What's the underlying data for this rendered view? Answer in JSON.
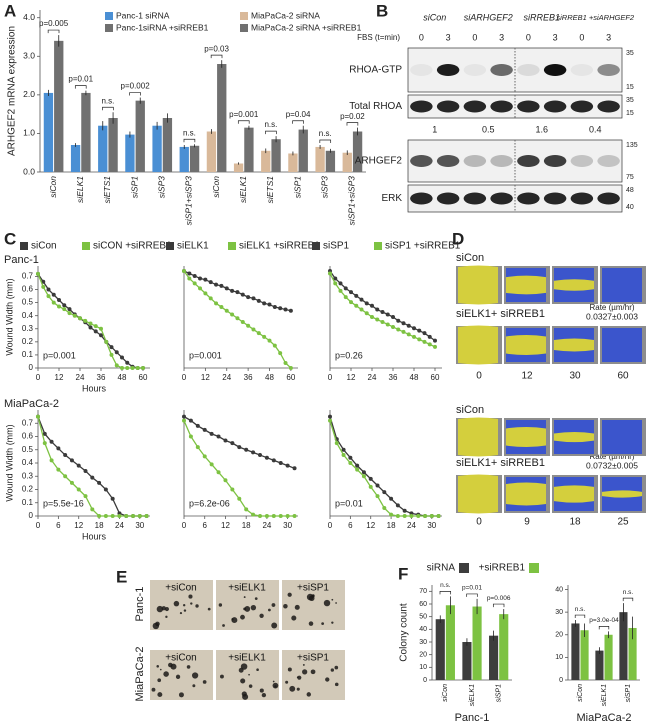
{
  "panel_labels": [
    "A",
    "B",
    "C",
    "D",
    "E",
    "F"
  ],
  "blot": {
    "conditions": [
      "siCon",
      "siARHGEF2",
      "siRREB1",
      "siRREB1 +siARHGEF2"
    ],
    "fbs_label": "FBS (t=min)",
    "times": [
      "0",
      "3"
    ],
    "rows": [
      {
        "label": "RHOA-GTP",
        "markers": [
          "35",
          "15"
        ]
      },
      {
        "label": "Total RHOA",
        "markers": [
          "35",
          "15"
        ]
      },
      {
        "label": "ARHGEF2",
        "markers": [
          "135",
          "75"
        ]
      },
      {
        "label": "ERK",
        "markers": [
          "48",
          "40"
        ]
      }
    ],
    "quantification": [
      1,
      0.5,
      1.6,
      0.4
    ]
  },
  "migration": {
    "blocks": [
      {
        "conditions": [
          "siCon",
          "siELK1+ siRREB1"
        ],
        "rate_label": "Rate (µm/hr)",
        "rate": "0.0327±0.003",
        "times": [
          "0",
          "12",
          "30",
          "60"
        ]
      },
      {
        "conditions": [
          "siCon",
          "siELK1+ siRREB1"
        ],
        "rate_label": "Rate (µm/hr)",
        "rate": "0.0732±0.005",
        "times": [
          "0",
          "9",
          "18",
          "25"
        ]
      }
    ]
  },
  "colony": {
    "rows": [
      "Panc-1",
      "MiaPaCa-2"
    ],
    "conditions": [
      "+siCon",
      "+siELK1",
      "+siSP1"
    ]
  },
  "chart_data": [
    {
      "type": "bar",
      "ylabel": "ARHGEF2 mRNA expression",
      "categories": [
        "siCon",
        "siELK1",
        "siETS1",
        "siSP1",
        "siSP3",
        "siSP1+siSP3",
        "siCon",
        "siELK1",
        "siETS1",
        "siSP1",
        "siSP3",
        "siSP1+siSP3"
      ],
      "series": [
        {
          "name": "Panc-1 siRNA",
          "color": "#4a8fd4",
          "values": [
            2.05,
            0.7,
            1.2,
            0.97,
            1.2,
            0.65,
            null,
            null,
            null,
            null,
            null,
            null
          ],
          "errors": [
            0.08,
            0.05,
            0.12,
            0.08,
            0.1,
            0.05,
            null,
            null,
            null,
            null,
            null,
            null
          ]
        },
        {
          "name": "Panc-1siRNA +siRREB1",
          "color": "#707070",
          "values": [
            3.4,
            2.05,
            1.4,
            1.85,
            1.4,
            0.68,
            null,
            null,
            null,
            null,
            null,
            null
          ],
          "errors": [
            0.15,
            0.06,
            0.15,
            0.08,
            0.12,
            0.04,
            null,
            null,
            null,
            null,
            null,
            null
          ]
        },
        {
          "name": "MiaPaCa-2 siRNA",
          "color": "#d9b99a",
          "values": [
            null,
            null,
            null,
            null,
            null,
            null,
            1.05,
            0.22,
            0.55,
            0.48,
            0.65,
            0.5
          ],
          "errors": [
            null,
            null,
            null,
            null,
            null,
            null,
            0.06,
            0.03,
            0.06,
            0.05,
            0.05,
            0.06
          ]
        },
        {
          "name": "MiaPaCa-2 siRNA +siRREB1",
          "color": "#707070",
          "values": [
            null,
            null,
            null,
            null,
            null,
            null,
            2.8,
            1.15,
            0.85,
            1.1,
            0.55,
            1.05
          ],
          "errors": [
            null,
            null,
            null,
            null,
            null,
            null,
            0.1,
            0.05,
            0.08,
            0.1,
            0.05,
            0.1
          ]
        }
      ],
      "annotations": [
        "p=0.005",
        "p=0.01",
        "n.s.",
        "p=0.002",
        null,
        "n.s.",
        "p=0.03",
        "p=0.001",
        "n.s.",
        "p=0.04",
        "n.s.",
        "p=0.02"
      ],
      "ylim": [
        0,
        4.2
      ],
      "yticks": [
        {
          "value": 0,
          "label": "0.0"
        },
        {
          "value": 1,
          "label": "1.0"
        },
        {
          "value": 2,
          "label": "2.0"
        },
        {
          "value": 3,
          "label": "3.0"
        },
        {
          "value": 4,
          "label": "4.0"
        }
      ]
    },
    {
      "type": "line",
      "row_label": "Panc-1",
      "ylabel": "Wound Width (mm)",
      "xlabel": "Hours",
      "annotation": "p=0.001",
      "x": [
        0,
        3,
        6,
        9,
        12,
        15,
        18,
        21,
        24,
        27,
        30,
        33,
        36,
        39,
        42,
        45,
        48,
        51,
        54,
        57,
        60
      ],
      "series": [
        {
          "name": "siCon",
          "color": "#3a3a3a",
          "values": [
            0.72,
            0.66,
            0.6,
            0.56,
            0.52,
            0.48,
            0.45,
            0.41,
            0.38,
            0.35,
            0.31,
            0.28,
            0.25,
            0.2,
            0.16,
            0.12,
            0.08,
            0.04,
            0.01,
            0,
            0
          ]
        },
        {
          "name": "siCON +siRREB1",
          "color": "#7dc242",
          "values": [
            0.72,
            0.62,
            0.55,
            0.5,
            0.47,
            0.45,
            0.42,
            0.4,
            0.38,
            0.36,
            0.34,
            0.32,
            0.3,
            0.2,
            0.1,
            0.02,
            0,
            0,
            0,
            0,
            0
          ]
        }
      ],
      "xlim": [
        0,
        64
      ],
      "xticks": [
        0,
        12,
        24,
        36,
        48,
        60
      ],
      "ylim": [
        0,
        0.78
      ],
      "yticks": [
        0,
        0.1,
        0.2,
        0.3,
        0.4,
        0.5,
        0.6,
        0.7
      ]
    },
    {
      "type": "line",
      "annotation": "p=0.001",
      "x": [
        0,
        3,
        6,
        9,
        12,
        15,
        18,
        21,
        24,
        27,
        30,
        33,
        36,
        39,
        42,
        45,
        48,
        51,
        54,
        57,
        60
      ],
      "series": [
        {
          "name": "siELK1",
          "color": "#3a3a3a",
          "values": [
            0.78,
            0.76,
            0.74,
            0.72,
            0.71,
            0.69,
            0.67,
            0.66,
            0.64,
            0.62,
            0.61,
            0.59,
            0.57,
            0.56,
            0.54,
            0.52,
            0.51,
            0.49,
            0.48,
            0.47,
            0.46
          ]
        },
        {
          "name": "siELK1 +siRREB1",
          "color": "#7dc242",
          "values": [
            0.78,
            0.72,
            0.68,
            0.64,
            0.6,
            0.56,
            0.52,
            0.49,
            0.46,
            0.43,
            0.4,
            0.37,
            0.34,
            0.31,
            0.28,
            0.25,
            0.22,
            0.18,
            0.12,
            0.04,
            0
          ]
        }
      ],
      "xlim": [
        0,
        64
      ],
      "xticks": [
        0,
        12,
        24,
        36,
        48,
        60
      ],
      "ylim": [
        0,
        0.82
      ]
    },
    {
      "type": "line",
      "annotation": "p=0.26",
      "x": [
        0,
        3,
        6,
        9,
        12,
        15,
        18,
        21,
        24,
        27,
        30,
        33,
        36,
        39,
        42,
        45,
        48,
        51,
        54,
        57,
        60
      ],
      "series": [
        {
          "name": "siSP1",
          "color": "#3a3a3a",
          "values": [
            0.78,
            0.72,
            0.68,
            0.64,
            0.61,
            0.58,
            0.55,
            0.52,
            0.5,
            0.47,
            0.45,
            0.43,
            0.41,
            0.38,
            0.36,
            0.34,
            0.32,
            0.3,
            0.28,
            0.25,
            0.22
          ]
        },
        {
          "name": "siSP1 +siRREB1",
          "color": "#7dc242",
          "values": [
            0.76,
            0.68,
            0.62,
            0.57,
            0.53,
            0.5,
            0.47,
            0.44,
            0.41,
            0.39,
            0.37,
            0.35,
            0.33,
            0.31,
            0.29,
            0.27,
            0.25,
            0.23,
            0.21,
            0.19,
            0.17
          ]
        }
      ],
      "xlim": [
        0,
        64
      ],
      "xticks": [
        0,
        12,
        24,
        36,
        48,
        60
      ],
      "ylim": [
        0,
        0.82
      ]
    },
    {
      "type": "line",
      "row_label": "MiaPaCa-2",
      "ylabel": "Wound Width (mm)",
      "xlabel": "Hours",
      "annotation": "p=5.5e-16",
      "x": [
        0,
        2,
        4,
        6,
        8,
        10,
        12,
        14,
        16,
        18,
        20,
        22,
        24,
        26,
        28,
        30,
        32
      ],
      "series": [
        {
          "color": "#3a3a3a",
          "values": [
            0.75,
            0.62,
            0.56,
            0.51,
            0.46,
            0.42,
            0.38,
            0.34,
            0.29,
            0.25,
            0.2,
            0.13,
            0.02,
            0,
            0,
            0,
            0
          ]
        },
        {
          "color": "#7dc242",
          "values": [
            0.75,
            0.55,
            0.42,
            0.35,
            0.3,
            0.25,
            0.2,
            0.15,
            0.05,
            0,
            0,
            0,
            0,
            0,
            0,
            0,
            0
          ]
        }
      ],
      "xlim": [
        0,
        33
      ],
      "xticks": [
        0,
        6,
        12,
        18,
        24,
        30
      ],
      "ylim": [
        0,
        0.8
      ],
      "yticks": [
        0,
        0.1,
        0.2,
        0.3,
        0.4,
        0.5,
        0.6,
        0.7
      ]
    },
    {
      "type": "line",
      "annotation": "p=6.2e-06",
      "x": [
        0,
        2,
        4,
        6,
        8,
        10,
        12,
        14,
        16,
        18,
        20,
        22,
        24,
        26,
        28,
        30,
        32
      ],
      "series": [
        {
          "color": "#3a3a3a",
          "values": [
            0.75,
            0.72,
            0.68,
            0.65,
            0.62,
            0.6,
            0.57,
            0.55,
            0.52,
            0.5,
            0.48,
            0.46,
            0.44,
            0.42,
            0.4,
            0.38,
            0.36
          ]
        },
        {
          "color": "#7dc242",
          "values": [
            0.72,
            0.6,
            0.52,
            0.45,
            0.39,
            0.33,
            0.27,
            0.2,
            0.13,
            0.05,
            0.01,
            0,
            0,
            0,
            0,
            0,
            0
          ]
        }
      ],
      "xlim": [
        0,
        33
      ],
      "xticks": [
        0,
        6,
        12,
        18,
        24,
        30
      ],
      "ylim": [
        0,
        0.8
      ]
    },
    {
      "type": "line",
      "annotation": "p=0.01",
      "x": [
        0,
        2,
        4,
        6,
        8,
        10,
        12,
        14,
        16,
        18,
        20,
        22,
        24,
        26,
        28,
        30,
        32
      ],
      "series": [
        {
          "color": "#3a3a3a",
          "values": [
            0.75,
            0.58,
            0.5,
            0.44,
            0.38,
            0.33,
            0.28,
            0.23,
            0.18,
            0.13,
            0.08,
            0.04,
            0.02,
            0.01,
            0,
            0,
            0
          ]
        },
        {
          "color": "#7dc242",
          "values": [
            0.72,
            0.55,
            0.46,
            0.4,
            0.35,
            0.3,
            0.22,
            0.15,
            0.06,
            0.01,
            0,
            0,
            0,
            0,
            0,
            0,
            0
          ]
        }
      ],
      "xlim": [
        0,
        33
      ],
      "xticks": [
        0,
        6,
        12,
        18,
        24,
        30
      ],
      "ylim": [
        0,
        0.8
      ]
    },
    {
      "type": "bar",
      "ylabel": "Colony count",
      "xlabel": "Panc-1",
      "categories": [
        "siCon",
        "siELK1",
        "siSP1"
      ],
      "series": [
        {
          "name": "siRNA",
          "color": "#3d3d3d",
          "values": [
            48,
            30,
            35
          ],
          "errors": [
            3,
            3,
            4
          ]
        },
        {
          "name": "+siRREB1",
          "color": "#7dc242",
          "values": [
            59,
            58,
            52
          ],
          "errors": [
            7,
            6,
            4
          ]
        }
      ],
      "annotations": [
        "n.s.",
        "p=0.01",
        "p=0.006"
      ],
      "ylim": [
        0,
        75
      ],
      "yticks": [
        0,
        10,
        20,
        30,
        40,
        50,
        60,
        70
      ]
    },
    {
      "type": "bar",
      "xlabel": "MiaPaCa-2",
      "categories": [
        "siCon",
        "siELK1",
        "siSP1"
      ],
      "series": [
        {
          "color": "#3d3d3d",
          "values": [
            25,
            13,
            30
          ],
          "errors": [
            1.5,
            1.5,
            4
          ]
        },
        {
          "color": "#7dc242",
          "values": [
            22,
            20,
            23
          ],
          "errors": [
            3,
            1.5,
            5
          ]
        }
      ],
      "annotations": [
        "n.s.",
        "p=3.0e-04",
        "n.s."
      ],
      "ylim": [
        0,
        42
      ],
      "yticks": [
        0,
        10,
        20,
        30,
        40
      ]
    }
  ]
}
